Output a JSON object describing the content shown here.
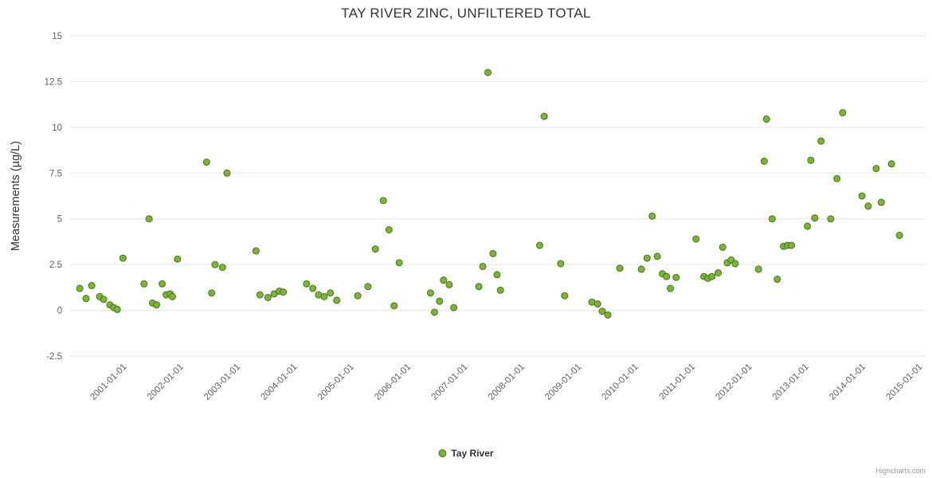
{
  "title": "TAY RIVER ZINC, UNFILTERED TOTAL",
  "legend": {
    "label": "Tay River"
  },
  "credits": "Highcharts.com",
  "colors": {
    "grid": "#e6e6e6",
    "tick_label": "#606060",
    "axis_title": "#333333",
    "title": "#333333",
    "point_fill": "#7cb33a",
    "point_stroke": "#4a7519"
  },
  "chart_data": {
    "type": "scatter",
    "title": "TAY RIVER ZINC, UNFILTERED TOTAL",
    "xlabel": "",
    "ylabel": "Measurements (µg/L)",
    "ylim": [
      -2.5,
      15
    ],
    "yticks": [
      -2.5,
      0,
      2.5,
      5,
      7.5,
      10,
      12.5,
      15
    ],
    "xlim": [
      2000,
      2015.05
    ],
    "xticks": [
      [
        2001,
        "2001-01-01"
      ],
      [
        2002,
        "2002-01-01"
      ],
      [
        2003,
        "2003-01-01"
      ],
      [
        2004,
        "2004-01-01"
      ],
      [
        2005,
        "2005-01-01"
      ],
      [
        2006,
        "2006-01-01"
      ],
      [
        2007,
        "2007-01-01"
      ],
      [
        2008,
        "2008-01-01"
      ],
      [
        2009,
        "2009-01-01"
      ],
      [
        2010,
        "2010-01-01"
      ],
      [
        2011,
        "2011-01-01"
      ],
      [
        2012,
        "2012-01-01"
      ],
      [
        2013,
        "2013-01-01"
      ],
      [
        2014,
        "2014-01-01"
      ],
      [
        2015,
        "2015-01-01"
      ]
    ],
    "grid": "horizontal",
    "legend_position": "bottom-center",
    "series": [
      {
        "name": "Tay River",
        "color": "#7cb33a",
        "border_color": "#4a7519",
        "points": [
          [
            2000.17,
            1.2
          ],
          [
            2000.28,
            0.65
          ],
          [
            2000.38,
            1.35
          ],
          [
            2000.52,
            0.75
          ],
          [
            2000.59,
            0.6
          ],
          [
            2000.7,
            0.3
          ],
          [
            2000.77,
            0.15
          ],
          [
            2000.83,
            0.05
          ],
          [
            2000.93,
            2.85
          ],
          [
            2001.3,
            1.45
          ],
          [
            2001.39,
            5.0
          ],
          [
            2001.45,
            0.4
          ],
          [
            2001.52,
            0.3
          ],
          [
            2001.62,
            1.45
          ],
          [
            2001.69,
            0.85
          ],
          [
            2001.76,
            0.9
          ],
          [
            2001.8,
            0.75
          ],
          [
            2001.89,
            2.8
          ],
          [
            2002.4,
            8.1
          ],
          [
            2002.49,
            0.95
          ],
          [
            2002.55,
            2.5
          ],
          [
            2002.68,
            2.35
          ],
          [
            2002.76,
            7.5
          ],
          [
            2003.27,
            3.25
          ],
          [
            2003.34,
            0.85
          ],
          [
            2003.48,
            0.7
          ],
          [
            2003.59,
            0.9
          ],
          [
            2003.68,
            1.05
          ],
          [
            2003.75,
            1.0
          ],
          [
            2004.16,
            1.45
          ],
          [
            2004.27,
            1.2
          ],
          [
            2004.37,
            0.85
          ],
          [
            2004.47,
            0.75
          ],
          [
            2004.58,
            0.95
          ],
          [
            2004.69,
            0.55
          ],
          [
            2005.06,
            0.8
          ],
          [
            2005.24,
            1.3
          ],
          [
            2005.37,
            3.35
          ],
          [
            2005.51,
            6.0
          ],
          [
            2005.61,
            4.4
          ],
          [
            2005.7,
            0.25
          ],
          [
            2005.79,
            2.6
          ],
          [
            2006.34,
            0.95
          ],
          [
            2006.41,
            -0.1
          ],
          [
            2006.5,
            0.5
          ],
          [
            2006.57,
            1.65
          ],
          [
            2006.67,
            1.4
          ],
          [
            2006.75,
            0.15
          ],
          [
            2007.19,
            1.3
          ],
          [
            2007.26,
            2.4
          ],
          [
            2007.35,
            13.0
          ],
          [
            2007.44,
            3.1
          ],
          [
            2007.51,
            1.95
          ],
          [
            2007.57,
            1.1
          ],
          [
            2008.26,
            3.55
          ],
          [
            2008.34,
            10.6
          ],
          [
            2008.63,
            2.55
          ],
          [
            2008.7,
            0.8
          ],
          [
            2009.18,
            0.45
          ],
          [
            2009.28,
            0.35
          ],
          [
            2009.36,
            -0.05
          ],
          [
            2009.46,
            -0.25
          ],
          [
            2009.67,
            2.3
          ],
          [
            2010.05,
            2.25
          ],
          [
            2010.15,
            2.85
          ],
          [
            2010.24,
            5.15
          ],
          [
            2010.33,
            2.95
          ],
          [
            2010.42,
            2.0
          ],
          [
            2010.49,
            1.85
          ],
          [
            2010.56,
            1.2
          ],
          [
            2010.66,
            1.8
          ],
          [
            2011.01,
            3.9
          ],
          [
            2011.15,
            1.85
          ],
          [
            2011.22,
            1.75
          ],
          [
            2011.29,
            1.85
          ],
          [
            2011.4,
            2.05
          ],
          [
            2011.48,
            3.45
          ],
          [
            2011.56,
            2.6
          ],
          [
            2011.63,
            2.75
          ],
          [
            2011.7,
            2.55
          ],
          [
            2012.11,
            2.25
          ],
          [
            2012.21,
            8.15
          ],
          [
            2012.25,
            10.45
          ],
          [
            2012.35,
            5.0
          ],
          [
            2012.44,
            1.7
          ],
          [
            2012.55,
            3.5
          ],
          [
            2012.62,
            3.55
          ],
          [
            2012.69,
            3.55
          ],
          [
            2012.97,
            4.6
          ],
          [
            2013.03,
            8.2
          ],
          [
            2013.1,
            5.05
          ],
          [
            2013.21,
            9.25
          ],
          [
            2013.38,
            5.0
          ],
          [
            2013.49,
            7.2
          ],
          [
            2013.59,
            10.8
          ],
          [
            2013.93,
            6.25
          ],
          [
            2014.04,
            5.7
          ],
          [
            2014.18,
            7.75
          ],
          [
            2014.27,
            5.9
          ],
          [
            2014.45,
            8.0
          ],
          [
            2014.59,
            4.1
          ]
        ]
      }
    ]
  }
}
